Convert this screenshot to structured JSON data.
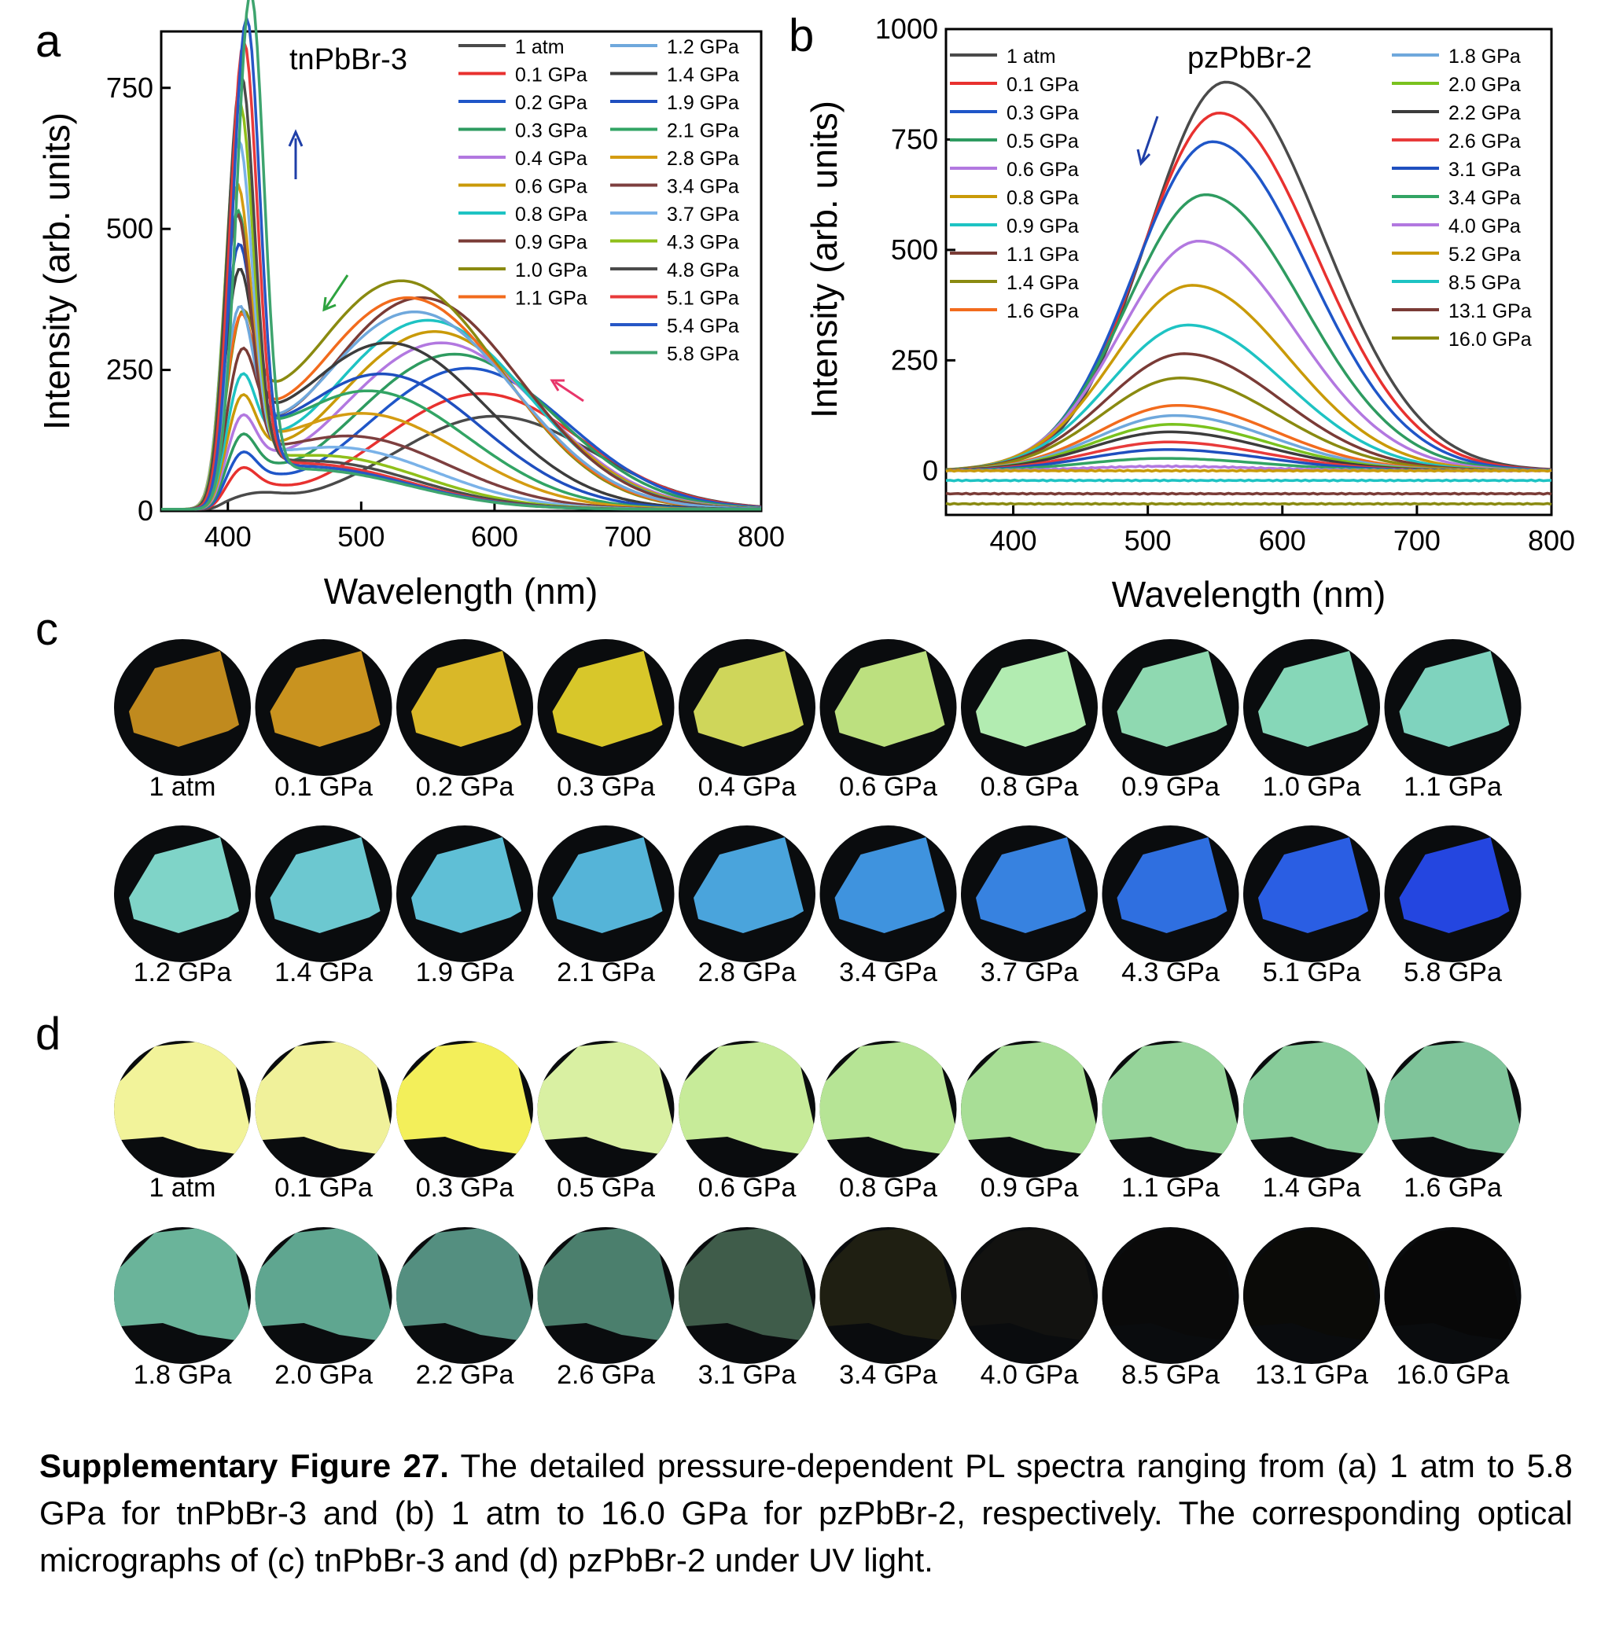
{
  "panel_labels": {
    "a": "a",
    "b": "b",
    "c": "c",
    "d": "d"
  },
  "chart_data": [
    {
      "type": "line",
      "panel": "a",
      "title": "tnPbBr-3",
      "xlabel": "Wavelength (nm)",
      "ylabel": "Intensity (arb. units)",
      "xlim": [
        350,
        800
      ],
      "ylim": [
        0,
        850
      ],
      "xticks": [
        400,
        500,
        600,
        700,
        800
      ],
      "yticks": [
        0,
        250,
        500,
        750
      ],
      "legend_position": "top-right",
      "series": [
        {
          "name": "1 atm",
          "color": "#4a4a4a",
          "peaks": [
            [
              410,
              0
            ],
            [
              600,
              165
            ]
          ]
        },
        {
          "name": "0.1 GPa",
          "color": "#e8312f",
          "peaks": [
            [
              410,
              40
            ],
            [
              590,
              205
            ]
          ]
        },
        {
          "name": "0.2 GPa",
          "color": "#1f56c8",
          "peaks": [
            [
              410,
              55
            ],
            [
              580,
              250
            ]
          ]
        },
        {
          "name": "0.3 GPa",
          "color": "#2e9b60",
          "peaks": [
            [
              410,
              75
            ],
            [
              570,
              275
            ]
          ]
        },
        {
          "name": "0.4 GPa",
          "color": "#b278e0",
          "peaks": [
            [
              410,
              95
            ],
            [
              560,
              295
            ]
          ]
        },
        {
          "name": "0.6 GPa",
          "color": "#c99a08",
          "peaks": [
            [
              410,
              120
            ],
            [
              555,
              315
            ]
          ]
        },
        {
          "name": "0.8 GPa",
          "color": "#1ec3c3",
          "peaks": [
            [
              410,
              145
            ],
            [
              550,
              335
            ]
          ]
        },
        {
          "name": "0.9 GPa",
          "color": "#7a3b36",
          "peaks": [
            [
              410,
              170
            ],
            [
              545,
              375
            ]
          ]
        },
        {
          "name": "1.0 GPa",
          "color": "#8a8a10",
          "peaks": [
            [
              410,
              195
            ],
            [
              530,
              405
            ]
          ]
        },
        {
          "name": "1.1 GPa",
          "color": "#f26b1d",
          "peaks": [
            [
              409,
              215
            ],
            [
              535,
              375
            ]
          ]
        },
        {
          "name": "1.2 GPa",
          "color": "#6fa8dc",
          "peaks": [
            [
              408,
              250
            ],
            [
              540,
              350
            ]
          ]
        },
        {
          "name": "1.4 GPa",
          "color": "#3c3c3c",
          "peaks": [
            [
              408,
              300
            ],
            [
              520,
              295
            ]
          ]
        },
        {
          "name": "1.9 GPa",
          "color": "#1f4fbf",
          "peaks": [
            [
              408,
              360
            ],
            [
              515,
              240
            ]
          ]
        },
        {
          "name": "2.1 GPa",
          "color": "#32a464",
          "peaks": [
            [
              407,
              420
            ],
            [
              505,
              210
            ]
          ]
        },
        {
          "name": "2.8 GPa",
          "color": "#d49c12",
          "peaks": [
            [
              407,
              480
            ],
            [
              500,
              170
            ]
          ]
        },
        {
          "name": "3.4 GPa",
          "color": "#7d3f3f",
          "peaks": [
            [
              407,
              440
            ],
            [
              490,
              130
            ]
          ]
        },
        {
          "name": "3.7 GPa",
          "color": "#7ab2e8",
          "peaks": [
            [
              408,
              575
            ],
            [
              480,
              110
            ]
          ]
        },
        {
          "name": "4.3 GPa",
          "color": "#8fbf1a",
          "peaks": [
            [
              409,
              640
            ],
            [
              470,
              95
            ]
          ]
        },
        {
          "name": "4.8 GPa",
          "color": "#4b4b4b",
          "peaks": [
            [
              410,
              695
            ],
            [
              465,
              85
            ]
          ]
        },
        {
          "name": "5.1 GPa",
          "color": "#e83a3a",
          "peaks": [
            [
              412,
              755
            ],
            [
              460,
              80
            ]
          ]
        },
        {
          "name": "5.4 GPa",
          "color": "#2757c6",
          "peaks": [
            [
              414,
              800
            ],
            [
              460,
              75
            ]
          ]
        },
        {
          "name": "5.8 GPa",
          "color": "#3ea46e",
          "peaks": [
            [
              417,
              850
            ],
            [
              460,
              70
            ]
          ]
        }
      ],
      "annotations": [
        {
          "shape": "arrow-up",
          "color": "#1f3fa8",
          "x": 455,
          "y": 570
        },
        {
          "shape": "arrow-down-left",
          "color": "#2ea33f",
          "x": 467,
          "y": 370
        },
        {
          "shape": "arrow-up-left",
          "color": "#e8356a",
          "x": 633,
          "y": 248
        }
      ]
    },
    {
      "type": "line",
      "panel": "b",
      "title": "pzPbBr-2",
      "xlabel": "Wavelength (nm)",
      "ylabel": "Intensity (arb. units)",
      "xlim": [
        350,
        800
      ],
      "ylim": [
        -100,
        1000
      ],
      "xticks": [
        400,
        500,
        600,
        700,
        800
      ],
      "yticks": [
        0,
        250,
        500,
        750,
        1000
      ],
      "legend_position": "top",
      "series": [
        {
          "name": "1 atm",
          "color": "#4a4a4a",
          "peak_x": 558,
          "peak_y": 880
        },
        {
          "name": "0.1 GPa",
          "color": "#e8312f",
          "peak_x": 553,
          "peak_y": 810
        },
        {
          "name": "0.3 GPa",
          "color": "#1f56c8",
          "peak_x": 548,
          "peak_y": 745
        },
        {
          "name": "0.5 GPa",
          "color": "#2e9b60",
          "peak_x": 543,
          "peak_y": 625
        },
        {
          "name": "0.6 GPa",
          "color": "#b278e0",
          "peak_x": 538,
          "peak_y": 520
        },
        {
          "name": "0.8 GPa",
          "color": "#c99a08",
          "peak_x": 533,
          "peak_y": 420
        },
        {
          "name": "0.9 GPa",
          "color": "#1ec3c3",
          "peak_x": 530,
          "peak_y": 330
        },
        {
          "name": "1.1 GPa",
          "color": "#7a3b36",
          "peak_x": 527,
          "peak_y": 265
        },
        {
          "name": "1.4 GPa",
          "color": "#8a8a10",
          "peak_x": 524,
          "peak_y": 210
        },
        {
          "name": "1.6 GPa",
          "color": "#f26b1d",
          "peak_x": 522,
          "peak_y": 148
        },
        {
          "name": "1.8 GPa",
          "color": "#6fa8dc",
          "peak_x": 520,
          "peak_y": 125
        },
        {
          "name": "2.0 GPa",
          "color": "#7ac21e",
          "peak_x": 518,
          "peak_y": 105
        },
        {
          "name": "2.2 GPa",
          "color": "#3c3c3c",
          "peak_x": 516,
          "peak_y": 88
        },
        {
          "name": "2.6 GPa",
          "color": "#e83a3a",
          "peak_x": 515,
          "peak_y": 65
        },
        {
          "name": "3.1 GPa",
          "color": "#1f4fbf",
          "peak_x": 514,
          "peak_y": 48
        },
        {
          "name": "3.4 GPa",
          "color": "#32a464",
          "peak_x": 512,
          "peak_y": 28
        },
        {
          "name": "4.0 GPa",
          "color": "#b278e0",
          "peak_x": 512,
          "peak_y": 10
        },
        {
          "name": "5.2 GPa",
          "color": "#c99a08",
          "peak_x": 510,
          "peak_y": 0
        },
        {
          "name": "8.5 GPa",
          "color": "#1ec3c3",
          "peak_x": 510,
          "peak_y": -22
        },
        {
          "name": "13.1 GPa",
          "color": "#7a3b36",
          "peak_x": 510,
          "peak_y": -52
        },
        {
          "name": "16.0 GPa",
          "color": "#8a8a10",
          "peak_x": 510,
          "peak_y": -75
        }
      ],
      "annotations": [
        {
          "shape": "arrow-down-left",
          "color": "#1f3fa8",
          "x": 510,
          "y": 720
        }
      ]
    }
  ],
  "micrographs_c": {
    "row1": [
      {
        "label": "1 atm",
        "color": "#c08a1e"
      },
      {
        "label": "0.1 GPa",
        "color": "#c9931f"
      },
      {
        "label": "0.2 GPa",
        "color": "#d9b828"
      },
      {
        "label": "0.3 GPa",
        "color": "#d8c72a"
      },
      {
        "label": "0.4 GPa",
        "color": "#cfd65a"
      },
      {
        "label": "0.6 GPa",
        "color": "#bce07f"
      },
      {
        "label": "0.8 GPa",
        "color": "#b2ecb1"
      },
      {
        "label": "0.9 GPa",
        "color": "#8fd9b1"
      },
      {
        "label": "1.0 GPa",
        "color": "#86d7b8"
      },
      {
        "label": "1.1 GPa",
        "color": "#7fd3be"
      }
    ],
    "row2": [
      {
        "label": "1.2 GPa",
        "color": "#7fd4c8"
      },
      {
        "label": "1.4 GPa",
        "color": "#6cc8d0"
      },
      {
        "label": "1.9 GPa",
        "color": "#5fbfd6"
      },
      {
        "label": "2.1 GPa",
        "color": "#55b4d8"
      },
      {
        "label": "2.8 GPa",
        "color": "#4aa4dc"
      },
      {
        "label": "3.4 GPa",
        "color": "#3f93de"
      },
      {
        "label": "3.7 GPa",
        "color": "#3782e0"
      },
      {
        "label": "4.3 GPa",
        "color": "#2f6fe0"
      },
      {
        "label": "5.1 GPa",
        "color": "#2a5ee3"
      },
      {
        "label": "5.8 GPa",
        "color": "#2446e0"
      }
    ]
  },
  "micrographs_d": {
    "row1": [
      {
        "label": "1 atm",
        "color": "#f2f39a"
      },
      {
        "label": "0.1 GPa",
        "color": "#f0f19a"
      },
      {
        "label": "0.3 GPa",
        "color": "#f3ef5a"
      },
      {
        "label": "0.5 GPa",
        "color": "#d9f0a2"
      },
      {
        "label": "0.6 GPa",
        "color": "#c7eb99"
      },
      {
        "label": "0.8 GPa",
        "color": "#b6e495"
      },
      {
        "label": "0.9 GPa",
        "color": "#a8de96"
      },
      {
        "label": "1.1 GPa",
        "color": "#96d49a"
      },
      {
        "label": "1.4 GPa",
        "color": "#88cc9a"
      },
      {
        "label": "1.6 GPa",
        "color": "#7fc49a"
      }
    ],
    "row2": [
      {
        "label": "1.8 GPa",
        "color": "#6ab49a"
      },
      {
        "label": "2.0 GPa",
        "color": "#5fa690"
      },
      {
        "label": "2.2 GPa",
        "color": "#548f80"
      },
      {
        "label": "2.6 GPa",
        "color": "#4b7f6d"
      },
      {
        "label": "3.1 GPa",
        "color": "#3f5c4a"
      },
      {
        "label": "3.4 GPa",
        "color": "#1f1f12"
      },
      {
        "label": "4.0 GPa",
        "color": "#121210"
      },
      {
        "label": "8.5 GPa",
        "color": "#0a0a0a"
      },
      {
        "label": "13.1 GPa",
        "color": "#0b0b08"
      },
      {
        "label": "16.0 GPa",
        "color": "#080808"
      }
    ]
  },
  "caption": {
    "bold": "Supplementary Figure 27.",
    "text": " The detailed pressure-dependent PL spectra ranging from (a) 1 atm to 5.8 GPa for tnPbBr-3 and (b) 1 atm to 16.0 GPa for pzPbBr-2, respectively. The corresponding optical micrographs of (c) tnPbBr-3 and (d) pzPbBr-2 under UV light."
  }
}
